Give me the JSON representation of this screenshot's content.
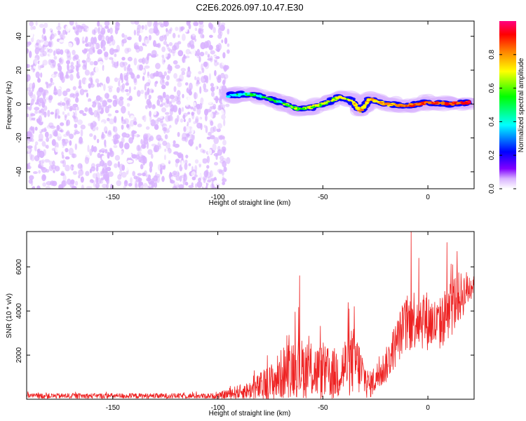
{
  "chart_data": [
    {
      "type": "heatmap",
      "title": "C2E6.2026.097.10.47.E30",
      "xlabel": "Height of straight line (km)",
      "ylabel": "Frequency (Hz)",
      "xlim": [
        -191,
        22
      ],
      "ylim": [
        -50,
        49
      ],
      "xticks": [
        -150,
        -100,
        -50,
        0
      ],
      "yticks": [
        -40,
        -20,
        0,
        20,
        40
      ],
      "xtick_labels": [
        "-150",
        "-100",
        "-50",
        "0"
      ],
      "ytick_labels": [
        "-40",
        "-20",
        "0",
        "20",
        "40"
      ],
      "colorbar": {
        "label": "Normalized spectral amplitude",
        "range": [
          0,
          1
        ],
        "ticks": [
          0.0,
          0.2,
          0.4,
          0.6,
          0.8
        ],
        "tick_labels": [
          "0.0",
          "0.2",
          "0.4",
          "0.6",
          "0.8"
        ],
        "colormap": [
          "#ffffff",
          "#d9b3ff",
          "#8000ff",
          "#0000ff",
          "#00ffff",
          "#00ff00",
          "#ffff00",
          "#ff8000",
          "#ff0000",
          "#ff0080"
        ]
      },
      "regions": [
        {
          "name": "noise",
          "x_range": [
            -191,
            -95
          ],
          "freq_range": [
            -50,
            49
          ],
          "amplitude": 0.1
        },
        {
          "name": "echo-trace",
          "points": [
            [
              -95,
              5
            ],
            [
              -85,
              6
            ],
            [
              -75,
              3
            ],
            [
              -68,
              0
            ],
            [
              -62,
              -3
            ],
            [
              -55,
              -2
            ],
            [
              -48,
              1
            ],
            [
              -42,
              4
            ],
            [
              -36,
              2
            ],
            [
              -32,
              -5
            ],
            [
              -28,
              3
            ],
            [
              -20,
              0
            ],
            [
              -10,
              -1
            ],
            [
              0,
              1
            ],
            [
              10,
              0
            ],
            [
              20,
              1
            ]
          ],
          "amplitude_start": 0.45,
          "amplitude_end": 0.9
        }
      ]
    },
    {
      "type": "line",
      "xlabel": "Height of straight line (km)",
      "ylabel": "SNR (10 * v/v)",
      "xlim": [
        -191,
        22
      ],
      "ylim": [
        0,
        7600
      ],
      "xticks": [
        -150,
        -100,
        -50,
        0
      ],
      "yticks": [
        2000,
        4000,
        6000
      ],
      "xtick_labels": [
        "-150",
        "-100",
        "-50",
        "0"
      ],
      "ytick_labels": [
        "2000",
        "4000",
        "6000"
      ],
      "color": "#ee2222",
      "envelope": [
        {
          "x": -191,
          "base": 150,
          "amp": 120
        },
        {
          "x": -100,
          "base": 150,
          "amp": 120
        },
        {
          "x": -95,
          "base": 250,
          "amp": 250
        },
        {
          "x": -85,
          "base": 400,
          "amp": 400
        },
        {
          "x": -75,
          "base": 700,
          "amp": 900
        },
        {
          "x": -65,
          "base": 1500,
          "amp": 1400
        },
        {
          "x": -55,
          "base": 1300,
          "amp": 1300
        },
        {
          "x": -45,
          "base": 1100,
          "amp": 1200
        },
        {
          "x": -35,
          "base": 1800,
          "amp": 1600
        },
        {
          "x": -28,
          "base": 600,
          "amp": 600
        },
        {
          "x": -20,
          "base": 1500,
          "amp": 800
        },
        {
          "x": -12,
          "base": 3200,
          "amp": 1200
        },
        {
          "x": -5,
          "base": 3800,
          "amp": 1500
        },
        {
          "x": 5,
          "base": 3300,
          "amp": 1200
        },
        {
          "x": 12,
          "base": 4300,
          "amp": 1400
        },
        {
          "x": 22,
          "base": 5300,
          "amp": 600
        }
      ],
      "peaks": [
        {
          "x": -61,
          "y": 5600
        },
        {
          "x": -35,
          "y": 4200
        },
        {
          "x": -8,
          "y": 7600
        },
        {
          "x": 9,
          "y": 7100
        },
        {
          "x": 14,
          "y": 6700
        }
      ]
    }
  ]
}
